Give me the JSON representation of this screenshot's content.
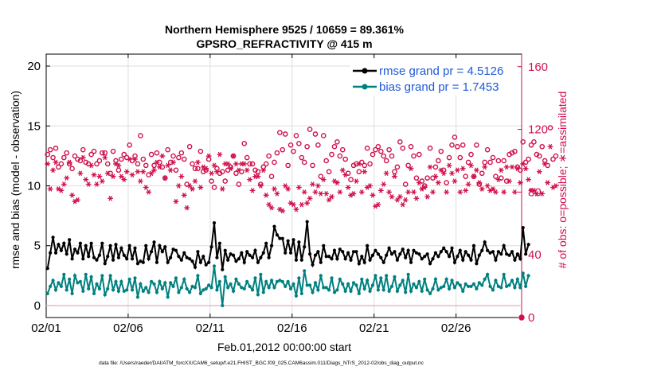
{
  "chart_data": {
    "type": "line",
    "title": "Northern Hemisphere 9525 / 10659 = 89.361%",
    "subtitle": "GPSRO_REFRACTIVITY @ 415 m",
    "xlabel": "Feb.01,2012 00:00:00 start",
    "ylabel": "rmse and bias (model - observation)",
    "y2label": "# of obs: o=possible; ∗=assimilated",
    "footnote": "data file: /Users/raeder/DAI/ATM_forcXX/CAM6_setup/f.e21.FHIST_BGC.f09_025.CAM6assim.011/Diags_NTrS_2012-02/obs_diag_output.nc",
    "x_tick_labels": [
      "02/01",
      "02/06",
      "02/11",
      "02/16",
      "02/21",
      "02/26"
    ],
    "x_tick_days": [
      1,
      6,
      11,
      16,
      21,
      26
    ],
    "xlim_days": [
      1,
      30.0
    ],
    "ylim": [
      -1,
      21
    ],
    "y_ticks": [
      0,
      5,
      10,
      15,
      20
    ],
    "y2lim": [
      0,
      168
    ],
    "y2_ticks": [
      0,
      40,
      80,
      120,
      160
    ],
    "legend_position": "top-right",
    "grid": true,
    "colors": {
      "rmse": "#000000",
      "bias": "#008080",
      "obs": "#d0104c",
      "zero_line": "#e8b8c8",
      "grid": "#dddddd"
    },
    "series": [
      {
        "name": "rmse grand pr = 4.5126",
        "values": [
          3.1,
          4.4,
          5.7,
          4.4,
          5.1,
          4.6,
          5.2,
          4.3,
          5.5,
          3.9,
          4.7,
          4.4,
          5.2,
          3.9,
          5.0,
          4.1,
          5.2,
          4.0,
          3.8,
          4.2,
          5.2,
          3.5,
          4.1,
          5.0,
          3.8,
          5.1,
          4.0,
          4.8,
          4.2,
          3.9,
          5.0,
          3.9,
          4.8,
          3.5,
          3.7,
          3.6,
          5.0,
          3.9,
          4.5,
          5.3,
          3.6,
          5.0,
          4.5,
          4.9,
          3.6,
          4.0,
          4.7,
          4.6,
          4.1,
          3.8,
          4.4,
          4.0,
          3.9,
          3.7,
          3.2,
          4.5,
          3.6,
          4.1,
          3.4,
          3.6,
          4.9,
          6.9,
          4.0,
          5.2,
          3.0,
          4.6,
          3.8,
          4.3,
          4.2,
          3.7,
          3.9,
          4.4,
          3.6,
          4.5,
          4.2,
          4.0,
          4.6,
          3.6,
          4.0,
          4.4,
          5.2,
          4.0,
          5.0,
          6.6,
          5.9,
          5.6,
          5.6,
          4.4,
          5.4,
          4.4,
          5.5,
          3.8,
          5.3,
          3.8,
          4.9,
          7.0,
          4.3,
          3.4,
          4.2,
          4.5,
          3.6,
          5.0,
          4.1,
          4.1,
          3.9,
          4.6,
          3.9,
          4.7,
          4.5,
          3.9,
          4.4,
          3.8,
          4.5,
          4.5,
          3.5,
          4.1,
          3.6,
          5.0,
          3.8,
          4.2,
          4.6,
          4.3,
          4.0,
          3.6,
          4.2,
          4.8,
          4.3,
          4.5,
          3.8,
          4.3,
          4.7,
          4.0,
          4.6,
          3.6,
          4.6,
          4.4,
          4.3,
          3.9,
          4.1,
          4.3,
          3.5,
          3.9,
          4.4,
          4.1,
          4.5,
          4.8,
          4.5,
          4.1,
          4.8,
          3.6,
          4.1,
          4.6,
          3.8,
          4.5,
          4.2,
          3.8,
          5.0,
          3.5,
          4.2,
          4.6,
          5.3,
          4.6,
          4.4,
          4.5,
          3.8,
          4.5,
          4.3,
          5.0,
          4.3,
          4.2,
          4.5,
          3.8,
          4.3,
          3.9,
          6.5,
          4.3,
          5.1
        ]
      },
      {
        "name": "bias grand pr = 1.7453",
        "values": [
          1.0,
          1.6,
          2.1,
          1.3,
          1.9,
          1.6,
          2.6,
          1.3,
          2.2,
          1.0,
          2.5,
          1.9,
          2.0,
          1.2,
          2.6,
          1.4,
          2.4,
          1.0,
          1.8,
          1.4,
          2.5,
          0.9,
          1.4,
          2.5,
          1.3,
          2.0,
          1.2,
          2.0,
          1.2,
          1.3,
          2.2,
          1.3,
          2.3,
          0.7,
          1.8,
          1.2,
          1.5,
          1.1,
          2.0,
          1.8,
          1.1,
          2.0,
          1.4,
          1.9,
          0.7,
          1.9,
          1.6,
          2.3,
          1.1,
          1.5,
          2.2,
          1.4,
          1.1,
          1.6,
          1.5,
          2.5,
          1.0,
          1.3,
          1.4,
          1.7,
          1.5,
          3.3,
          1.3,
          2.0,
          0.0,
          2.4,
          1.5,
          1.8,
          1.2,
          2.2,
          1.8,
          1.5,
          1.4,
          2.0,
          1.6,
          1.3,
          2.3,
          0.9,
          2.6,
          1.1,
          2.0,
          1.5,
          2.1,
          1.5,
          2.0,
          2.1,
          2.0,
          1.6,
          2.0,
          1.4,
          1.8,
          0.8,
          2.3,
          1.0,
          2.9,
          1.7,
          1.7,
          1.1,
          1.9,
          1.3,
          2.5,
          1.5,
          1.5,
          1.3,
          2.3,
          1.1,
          1.3,
          2.2,
          1.8,
          1.2,
          1.8,
          1.2,
          1.9,
          1.7,
          1.0,
          2.2,
          1.4,
          2.1,
          1.2,
          1.7,
          2.5,
          1.3,
          2.3,
          1.3,
          2.5,
          1.2,
          1.6,
          2.4,
          1.2,
          1.7,
          2.1,
          1.1,
          2.6,
          1.2,
          1.8,
          1.5,
          2.0,
          1.2,
          2.2,
          1.3,
          1.0,
          1.4,
          2.2,
          1.3,
          1.5,
          1.6,
          2.2,
          1.4,
          2.1,
          1.5,
          1.9,
          1.7,
          1.2,
          1.8,
          1.6,
          1.6,
          1.8,
          1.4,
          1.9,
          1.7,
          2.2,
          2.6,
          1.6,
          1.3,
          2.1,
          1.6,
          1.5,
          2.6,
          1.6,
          1.7,
          2.1,
          1.5,
          2.2,
          1.5,
          2.7,
          1.6,
          2.5
        ]
      },
      {
        "name": "possible",
        "axis": "right",
        "values": [
          104,
          107,
          102,
          108,
          96,
          98,
          102,
          105,
          98,
          95,
          103,
          101,
          100,
          107,
          99,
          98,
          104,
          106,
          98,
          100,
          105,
          105,
          98,
          92,
          106,
          100,
          94,
          101,
          104,
          102,
          110,
          100,
          103,
          98,
          116,
          101,
          97,
          91,
          104,
          97,
          105,
          99,
          96,
          89,
          107,
          99,
          103,
          94,
          102,
          105,
          101,
          85,
          109,
          98,
          95,
          95,
          106,
          93,
          94,
          101,
          87,
          83,
          95,
          92,
          93,
          87,
          94,
          96,
          103,
          92,
          85,
          93,
          111,
          102,
          98,
          98,
          94,
          93,
          85,
          96,
          98,
          103,
          90,
          99,
          105,
          118,
          107,
          117,
          97,
          110,
          106,
          116,
          111,
          102,
          99,
          109,
          120,
          97,
          117,
          110,
          90,
          116,
          100,
          93,
          104,
          109,
          112,
          103,
          107,
          101,
          92,
          88,
          97,
          98,
          93,
          99,
          97,
          108,
          98,
          104,
          107,
          109,
          106,
          103,
          100,
          107,
          103,
          93,
          96,
          112,
          108,
          85,
          97,
          109,
          103,
          89,
          104,
          87,
          84,
          89,
          108,
          89,
          96,
          100,
          106,
          94,
          86,
          102,
          110,
          115,
          109,
          102,
          110,
          90,
          99,
          104,
          90,
          110,
          85,
          92,
          99,
          107,
          99,
          102,
          90,
          100,
          89,
          100,
          87,
          104,
          105,
          106,
          96,
          94,
          112,
          99,
          101,
          110,
          112,
          104,
          103,
          109,
          100,
          97,
          121,
          101,
          103
        ]
      },
      {
        "name": "assimilated",
        "axis": "right",
        "values": [
          98,
          82,
          94,
          99,
          82,
          81,
          85,
          89,
          99,
          78,
          74,
          75,
          92,
          102,
          88,
          85,
          97,
          91,
          85,
          90,
          87,
          102,
          92,
          76,
          90,
          98,
          97,
          90,
          88,
          93,
          101,
          91,
          101,
          93,
          87,
          93,
          83,
          80,
          92,
          94,
          99,
          96,
          103,
          89,
          97,
          94,
          99,
          74,
          84,
          90,
          78,
          70,
          84,
          82,
          87,
          99,
          83,
          96,
          95,
          103,
          92,
          97,
          93,
          104,
          82,
          98,
          98,
          95,
          103,
          98,
          94,
          98,
          98,
          94,
          88,
          81,
          90,
          90,
          84,
          94,
          78,
          72,
          70,
          82,
          79,
          69,
          68,
          84,
          82,
          73,
          72,
          69,
          83,
          72,
          80,
          73,
          76,
          85,
          80,
          84,
          79,
          88,
          79,
          75,
          77,
          87,
          86,
          80,
          94,
          91,
          83,
          78,
          79,
          87,
          98,
          80,
          93,
          83,
          84,
          78,
          71,
          72,
          81,
          85,
          92,
          80,
          77,
          90,
          75,
          77,
          72,
          75,
          80,
          95,
          80,
          76,
          86,
          82,
          83,
          77,
          96,
          80,
          90,
          86,
          94,
          92,
          80,
          97,
          92,
          87,
          94,
          80,
          95,
          81,
          85,
          97,
          90,
          94,
          86,
          82,
          96,
          84,
          81,
          82,
          80,
          88,
          94,
          80,
          96,
          87,
          96,
          80,
          95,
          86,
          98,
          95,
          88,
          81,
          81,
          79,
          93,
          79,
          98,
          86,
          109,
          83,
          84
        ]
      }
    ]
  }
}
